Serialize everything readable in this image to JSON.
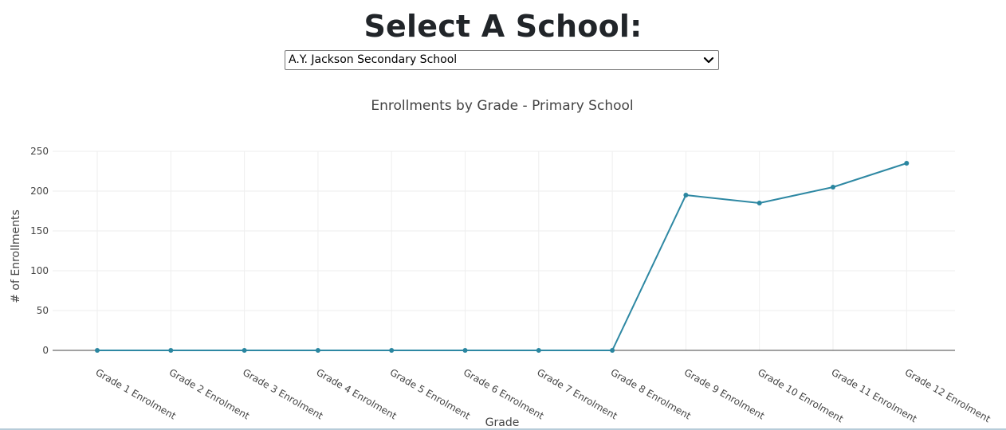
{
  "header": {
    "title": "Select A School:"
  },
  "school_select": {
    "selected": "A.Y. Jackson Secondary School"
  },
  "colors": {
    "line": "#2e88a3",
    "marker": "#2a86a0",
    "grid": "#eeeeee",
    "zero_line": "#444444",
    "text": "#444444"
  },
  "chart_data": {
    "type": "line",
    "title": "Enrollments by Grade - Primary School",
    "xlabel": "Grade",
    "ylabel": "# of Enrollments",
    "categories": [
      "Grade 1 Enrolment",
      "Grade 2 Enrolment",
      "Grade 3 Enrolment",
      "Grade 4 Enrolment",
      "Grade 5 Enrolment",
      "Grade 6 Enrolment",
      "Grade 7 Enrolment",
      "Grade 8 Enrolment",
      "Grade 9 Enrolment",
      "Grade 10 Enrolment",
      "Grade 11 Enrolment",
      "Grade 12 Enrolment"
    ],
    "values": [
      0,
      0,
      0,
      0,
      0,
      0,
      0,
      0,
      195,
      185,
      205,
      235
    ],
    "yticks": [
      0,
      50,
      100,
      150,
      200,
      250
    ],
    "ylim": [
      0,
      250
    ],
    "grid": true,
    "markers": true
  }
}
